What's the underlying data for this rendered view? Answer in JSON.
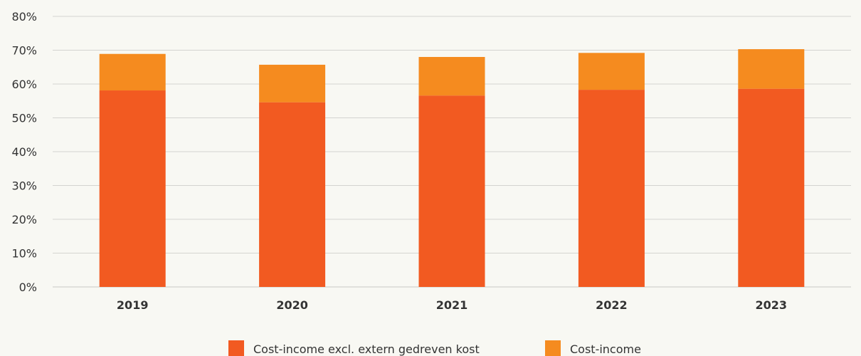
{
  "chart_data": {
    "type": "bar",
    "stacked": true,
    "categories": [
      "2019",
      "2020",
      "2021",
      "2022",
      "2023"
    ],
    "series": [
      {
        "name": "Cost-income excl. extern gedreven kost",
        "color": "#f25a21",
        "values": [
          58.1,
          54.6,
          56.6,
          58.3,
          58.6
        ]
      },
      {
        "name": "Cost-income",
        "color": "#f58b1f",
        "values": [
          10.8,
          11.1,
          11.4,
          10.9,
          11.7
        ]
      }
    ],
    "ylim": [
      0,
      80
    ],
    "yticks": [
      0,
      10,
      20,
      30,
      40,
      50,
      60,
      70,
      80
    ],
    "ytick_labels": [
      "0%",
      "10%",
      "20%",
      "30%",
      "40%",
      "50%",
      "60%",
      "70%",
      "80%"
    ],
    "grid": true,
    "legend": "bottom-center",
    "title": "",
    "xlabel": "",
    "ylabel": ""
  }
}
